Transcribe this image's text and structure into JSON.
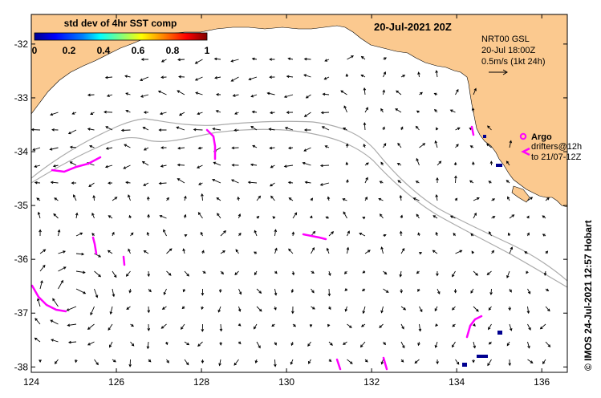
{
  "map": {
    "date_title": "20-Jul-2021 20Z",
    "product_line1": "NRT00 GSL",
    "product_line2": "20-Jul 18:00Z",
    "scale_label": "0.5m/s (1kt 24h)",
    "credit": "© IMOS 24-Jul-2021 12:57 Hobart",
    "colorbar": {
      "title": "std dev of 4hr SST comp",
      "ticks": [
        "0",
        "0.2",
        "0.4",
        "0.6",
        "0.8",
        "1"
      ],
      "colors": [
        "#00008f",
        "#0000ff",
        "#0080ff",
        "#00ffff",
        "#80ff80",
        "#ffff00",
        "#ff8000",
        "#ff0000",
        "#800000"
      ]
    },
    "legend": {
      "argo_label": "Argo",
      "drifters_line1": "drifters@12h",
      "drifters_line2": "to 21/07-12Z"
    },
    "axes": {
      "x_ticks": [
        "124",
        "126",
        "128",
        "130",
        "132",
        "134",
        "136"
      ],
      "y_ticks": [
        "-32",
        "-33",
        "-34",
        "-35",
        "-36",
        "-37",
        "-38"
      ]
    },
    "colors": {
      "land": "#fbc98f",
      "drifter": "#ff00ff",
      "depth_contour": "#aaaaaa",
      "sst_patch": "#000090"
    }
  }
}
